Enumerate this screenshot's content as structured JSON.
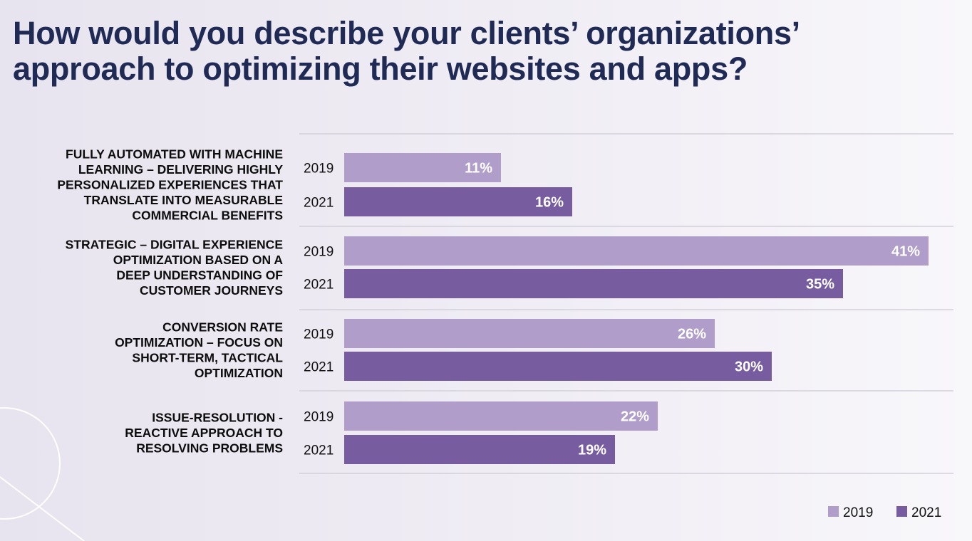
{
  "title_lines": [
    "How would you describe your clients’ organizations’",
    "approach to optimizing their websites and apps?"
  ],
  "colors": {
    "2019": "#b09dc9",
    "2021": "#775c9f",
    "title": "#1f2a55"
  },
  "chart_data": {
    "type": "bar",
    "orientation": "horizontal",
    "title": "How would you describe your clients’ organizations’ approach to optimizing their websites and apps?",
    "categories": [
      [
        "FULLY AUTOMATED WITH MACHINE",
        "LEARNING – DELIVERING HIGHLY",
        "PERSONALIZED EXPERIENCES THAT",
        "TRANSLATE INTO MEASURABLE",
        "COMMERCIAL BENEFITS"
      ],
      [
        "STRATEGIC – DIGITAL EXPERIENCE",
        "OPTIMIZATION BASED ON A",
        "DEEP UNDERSTANDING OF",
        "CUSTOMER JOURNEYS"
      ],
      [
        "CONVERSION RATE",
        "OPTIMIZATION – FOCUS ON",
        "SHORT-TERM, TACTICAL",
        "OPTIMIZATION"
      ],
      [
        "ISSUE-RESOLUTION -",
        "REACTIVE APPROACH TO",
        "RESOLVING PROBLEMS"
      ]
    ],
    "series": [
      {
        "name": "2019",
        "values": [
          11,
          41,
          26,
          22
        ]
      },
      {
        "name": "2021",
        "values": [
          16,
          35,
          30,
          19
        ]
      }
    ],
    "value_suffix": "%",
    "xlim": [
      0,
      43
    ],
    "legend": "bottom-right",
    "grid": false
  }
}
